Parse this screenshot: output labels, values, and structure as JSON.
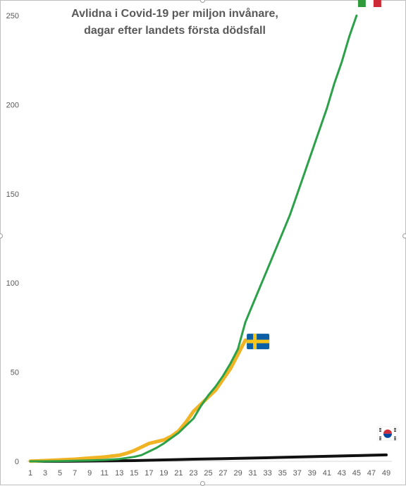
{
  "chart_data": {
    "type": "line",
    "title_line1": "Avlidna i Covid-19 per miljon invånare,",
    "title_line2": "dagar efter landets första dödsfall",
    "xlabel": "",
    "ylabel": "",
    "ylim": [
      0,
      250
    ],
    "yticks": [
      0,
      50,
      100,
      150,
      200,
      250
    ],
    "xticks": [
      1,
      3,
      5,
      7,
      9,
      11,
      13,
      15,
      17,
      19,
      21,
      23,
      25,
      27,
      29,
      31,
      33,
      35,
      37,
      39,
      41,
      43,
      45,
      47,
      49
    ],
    "grid": false,
    "legend": "none",
    "series": [
      {
        "flag": "italy",
        "color": "#2ca14a",
        "x": [
          1,
          3,
          5,
          7,
          9,
          11,
          13,
          15,
          16,
          17,
          18,
          19,
          20,
          21,
          22,
          23,
          24,
          25,
          26,
          27,
          28,
          29,
          30,
          31,
          32,
          33,
          34,
          35,
          36,
          37,
          38,
          39,
          40,
          41,
          42,
          43,
          44,
          45
        ],
        "values": [
          0,
          0,
          0.1,
          0.3,
          0.5,
          0.8,
          1.3,
          2.5,
          3.5,
          5.5,
          7.5,
          10,
          13,
          16,
          20,
          24,
          31,
          37,
          42,
          48,
          55,
          63,
          78,
          88,
          98,
          108,
          118,
          128,
          138,
          150,
          162,
          174,
          186,
          198,
          212,
          224,
          238,
          250
        ]
      },
      {
        "flag": "sweden",
        "color": "#f0b323",
        "x": [
          1,
          3,
          5,
          7,
          9,
          11,
          13,
          14,
          15,
          16,
          17,
          18,
          19,
          20,
          21,
          22,
          23,
          24,
          25,
          26,
          27,
          28,
          29,
          30
        ],
        "values": [
          0.1,
          0.4,
          0.8,
          1.2,
          1.8,
          2.4,
          3.4,
          4.5,
          6,
          8,
          10,
          11,
          12,
          14,
          17,
          22,
          28,
          32,
          36,
          40,
          46,
          52,
          60,
          68
        ]
      },
      {
        "flag": "south-korea",
        "color": "#111111",
        "x": [
          1,
          5,
          10,
          15,
          19,
          23,
          27,
          31,
          35,
          39,
          43,
          45,
          47,
          49
        ],
        "values": [
          0,
          0,
          0.2,
          0.4,
          0.8,
          1.2,
          1.5,
          1.8,
          2.2,
          2.6,
          3,
          3.2,
          3.4,
          3.6
        ]
      }
    ]
  }
}
